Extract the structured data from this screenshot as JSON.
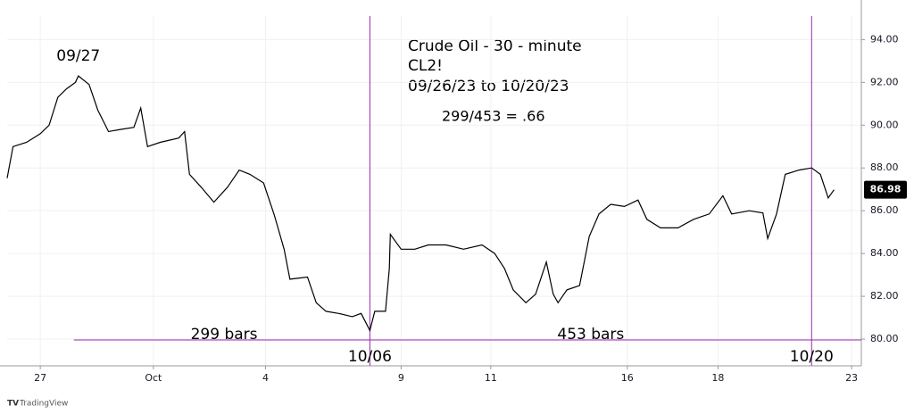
{
  "chart_data": {
    "type": "line",
    "title": "Crude Oil - 30 - minute",
    "subtitle": "CL2!",
    "date_range": "09/26/23 to 10/20/23",
    "ratio_note": "299/453 = .66",
    "watermark": "TradingView",
    "series": [
      {
        "name": "CL2!",
        "color": "#000000",
        "x": [
          0,
          6,
          20,
          34,
          43,
          52,
          61,
          70,
          73,
          84,
          93,
          104,
          116,
          130,
          137,
          144,
          157,
          176,
          182,
          187,
          199,
          212,
          226,
          238,
          249,
          263,
          274,
          284,
          290,
          308,
          317,
          327,
          340,
          354,
          363,
          372,
          377,
          388,
          392,
          393,
          404,
          418,
          432,
          450,
          468,
          487,
          500,
          510,
          519,
          532,
          542,
          553,
          560,
          565,
          574,
          587,
          597,
          607,
          619,
          633,
          647,
          656,
          670,
          688,
          704,
          720,
          734,
          743,
          761,
          775,
          780,
          789,
          798,
          812,
          825,
          834,
          842,
          848
        ],
        "values": [
          87.52,
          89.0,
          89.2,
          89.6,
          90.0,
          91.3,
          91.7,
          92.0,
          92.3,
          91.9,
          90.7,
          89.7,
          89.8,
          89.9,
          90.8,
          89.0,
          89.2,
          89.4,
          89.7,
          87.7,
          87.1,
          86.4,
          87.1,
          87.9,
          87.7,
          87.3,
          85.8,
          84.2,
          82.8,
          82.9,
          81.7,
          81.3,
          81.2,
          81.05,
          81.2,
          80.4,
          81.3,
          81.3,
          83.3,
          84.9,
          84.2,
          84.2,
          84.4,
          84.4,
          84.2,
          84.4,
          84.0,
          83.3,
          82.3,
          81.7,
          82.1,
          83.6,
          82.1,
          81.7,
          82.3,
          82.5,
          84.8,
          85.85,
          86.3,
          86.2,
          86.5,
          85.6,
          85.2,
          85.2,
          85.6,
          85.85,
          86.7,
          85.85,
          86.0,
          85.9,
          84.7,
          85.85,
          87.7,
          87.9,
          88.0,
          87.7,
          86.6,
          86.98
        ]
      }
    ],
    "xlim": [
      0,
      876
    ],
    "xticks": [
      {
        "value": 34,
        "label": "27"
      },
      {
        "value": 150,
        "label": "Oct"
      },
      {
        "value": 265,
        "label": "4"
      },
      {
        "value": 404,
        "label": "9"
      },
      {
        "value": 496,
        "label": "11"
      },
      {
        "value": 636,
        "label": "16"
      },
      {
        "value": 729,
        "label": "18"
      },
      {
        "value": 866,
        "label": "23"
      }
    ],
    "ylim": [
      78.75,
      95.1
    ],
    "yticks": [
      {
        "value": 80,
        "label": "80.00"
      },
      {
        "value": 82,
        "label": "82.00"
      },
      {
        "value": 84,
        "label": "84.00"
      },
      {
        "value": 86,
        "label": "86.00"
      },
      {
        "value": 88,
        "label": "88.00"
      },
      {
        "value": 90,
        "label": "90.00"
      },
      {
        "value": 92,
        "label": "92.00"
      },
      {
        "value": 94,
        "label": "94.00"
      }
    ],
    "grid": true,
    "last_price": 86.98,
    "peak": {
      "label": "09/27",
      "x": 73
    },
    "markers": [
      {
        "label": "10/06",
        "x": 372,
        "count_label": "299 bars"
      },
      {
        "label": "10/20",
        "x": 825,
        "count_label": "453 bars"
      }
    ],
    "marker_color": "#9c27b0"
  }
}
